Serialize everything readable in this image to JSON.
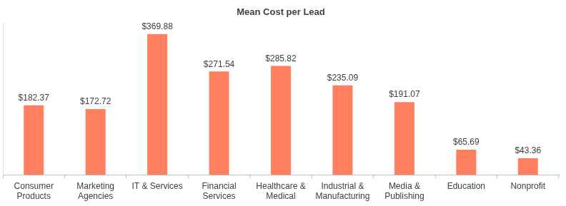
{
  "chart_data": {
    "type": "bar",
    "title": "Mean Cost per Lead",
    "categories": [
      "Consumer Products",
      "Marketing Agencies",
      "IT & Services",
      "Financial Services",
      "Healthcare & Medical",
      "Industrial & Manufacturing",
      "Media & Publishing",
      "Education",
      "Nonprofit"
    ],
    "values": [
      182.37,
      172.72,
      369.88,
      271.54,
      285.82,
      235.09,
      191.07,
      65.69,
      43.36
    ],
    "value_labels": [
      "$182.37",
      "$172.72",
      "$369.88",
      "$271.54",
      "$285.82",
      "$235.09",
      "$191.07",
      "$65.69",
      "$43.36"
    ],
    "color": "#ff7f5f",
    "ylim": [
      0,
      400
    ],
    "grid": false,
    "data_labels": true,
    "tick_labels": "x"
  }
}
